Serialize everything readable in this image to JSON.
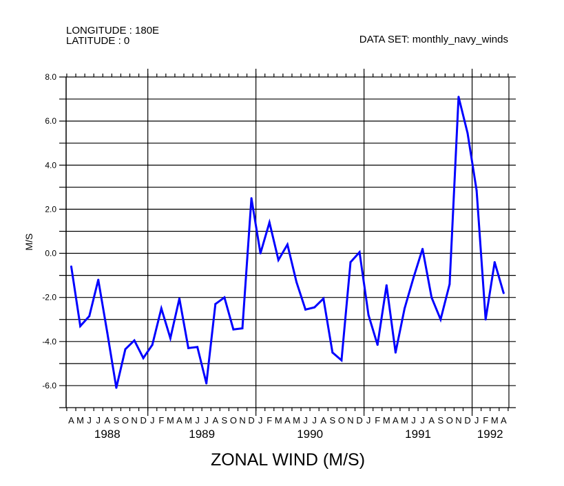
{
  "header": {
    "longitude": "LONGITUDE : 180E",
    "latitude": "LATITUDE : 0",
    "dataset": "DATA SET: monthly_navy_winds"
  },
  "chart_data": {
    "type": "line",
    "title": "ZONAL WIND (M/S)",
    "xlabel": "",
    "ylabel": "M/S",
    "ylim": [
      -7,
      8
    ],
    "yticks": [
      -6,
      -4,
      -2,
      0,
      2,
      4,
      6,
      8
    ],
    "ytick_labels": [
      "-6.0",
      "-4.0",
      "-2.0",
      "0.0",
      "2.0",
      "4.0",
      "6.0",
      "8.0"
    ],
    "grid": true,
    "color": "#0000ff",
    "month_labels": [
      "A",
      "M",
      "J",
      "J",
      "A",
      "S",
      "O",
      "N",
      "D",
      "J",
      "F",
      "M",
      "A",
      "M",
      "J",
      "J",
      "A",
      "S",
      "O",
      "N",
      "D",
      "J",
      "F",
      "M",
      "A",
      "M",
      "J",
      "J",
      "A",
      "S",
      "O",
      "N",
      "D",
      "J",
      "F",
      "M",
      "A",
      "M",
      "J",
      "J",
      "A",
      "S",
      "O",
      "N",
      "D",
      "J",
      "F",
      "M",
      "A"
    ],
    "years": [
      {
        "label": "1988",
        "center_month_index": 4
      },
      {
        "label": "1989",
        "center_month_index": 14.5
      },
      {
        "label": "1990",
        "center_month_index": 26.5
      },
      {
        "label": "1991",
        "center_month_index": 38.5
      },
      {
        "label": "1992",
        "center_month_index": 46.5
      }
    ],
    "year_boundaries_after_index": [
      8,
      20,
      32,
      44
    ],
    "series": [
      {
        "name": "zonal wind",
        "values": [
          -0.6,
          -3.3,
          -2.85,
          -1.2,
          -3.6,
          -6.1,
          -4.35,
          -3.95,
          -4.75,
          -4.15,
          -2.5,
          -3.85,
          -2.05,
          -4.3,
          -4.25,
          -5.9,
          -2.3,
          -2.0,
          -3.45,
          -3.4,
          2.5,
          0.0,
          1.4,
          -0.3,
          0.4,
          -1.3,
          -2.55,
          -2.45,
          -2.05,
          -4.5,
          -4.85,
          -0.4,
          0.05,
          -2.8,
          -4.15,
          -1.45,
          -4.5,
          -2.5,
          -1.1,
          0.2,
          -2.0,
          -3.0,
          -1.4,
          7.1,
          5.45,
          2.85,
          -3.0,
          -0.4,
          -1.8
        ]
      }
    ]
  }
}
